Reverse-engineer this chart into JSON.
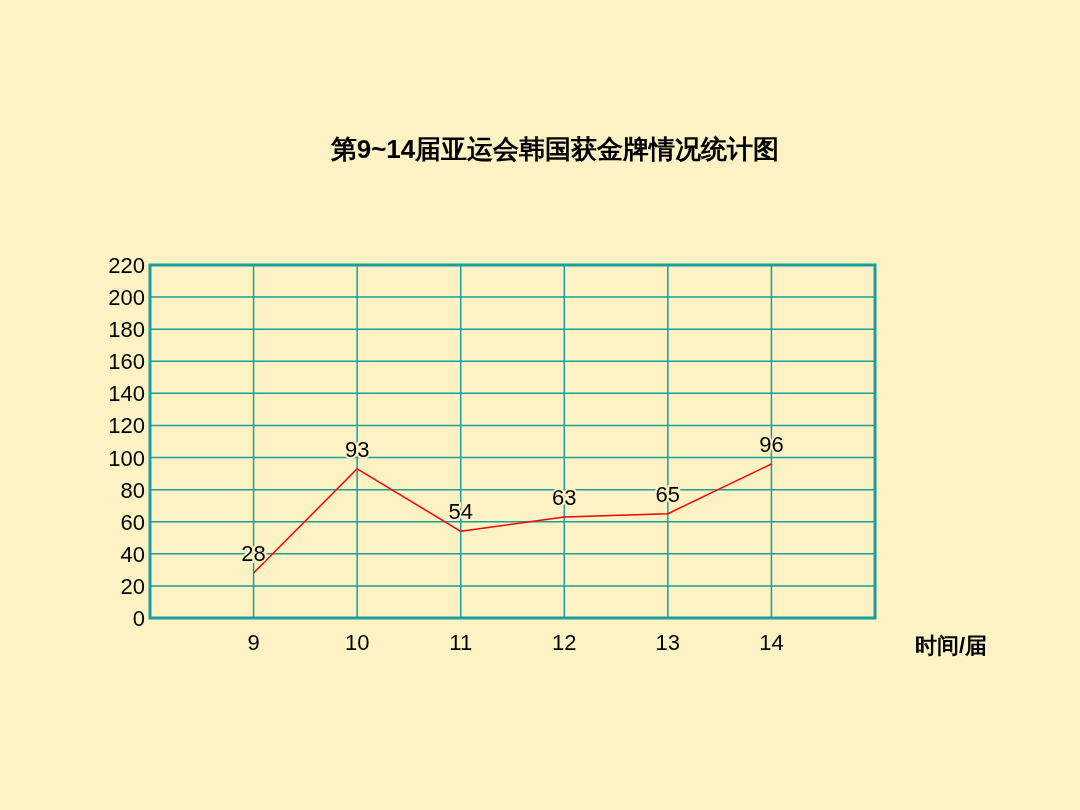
{
  "chart_data": {
    "type": "line",
    "title": "第9~14届亚运会韩国获金牌情况统计图",
    "xlabel": "时间/届",
    "categories": [
      "9",
      "10",
      "11",
      "12",
      "13",
      "14"
    ],
    "series": [
      {
        "color": "#ff0000",
        "values": [
          28,
          93,
          54,
          63,
          65,
          96
        ]
      }
    ],
    "ylim": [
      0,
      220
    ],
    "yticks": [
      0,
      20,
      40,
      60,
      80,
      100,
      120,
      140,
      160,
      180,
      200,
      220
    ],
    "grid": true,
    "data_labels": true
  }
}
